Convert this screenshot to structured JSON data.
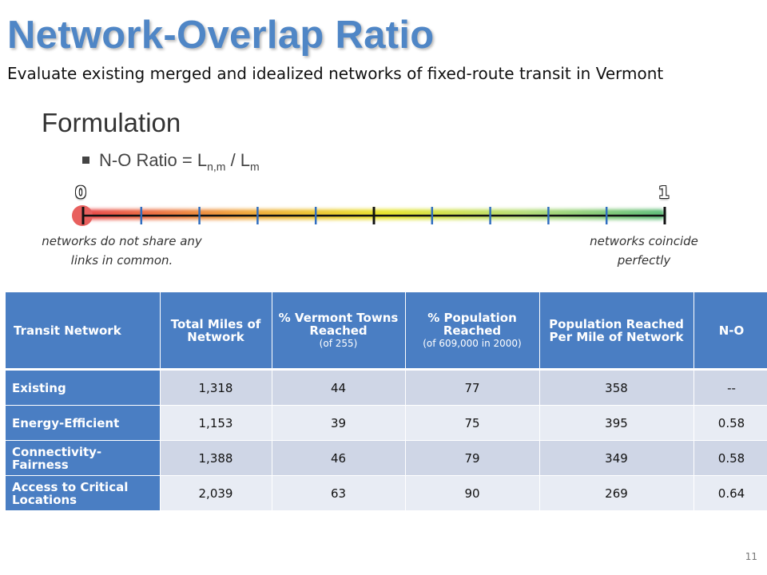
{
  "slide": {
    "title": "Network-Overlap Ratio",
    "subtitle": "Evaluate existing merged and idealized networks of fixed-route transit in Vermont",
    "heading": "Formulation",
    "formula": {
      "prefix": "N-O Ratio = L",
      "sub1": "n,m",
      "middle": " / L",
      "sub2": "m"
    },
    "page_number": "11"
  },
  "scale": {
    "min_label": "0",
    "max_label": "1",
    "left_note": [
      "networks do not share any",
      "links in common."
    ],
    "right_note": [
      "networks coincide",
      "perfectly"
    ],
    "gradient_colors": [
      "#e8474a",
      "#f0a83c",
      "#e8e52e",
      "#b6dd7a",
      "#5ebc7a"
    ],
    "tick_color": "#2f6dc0",
    "end_marker_color": "#e8605e"
  },
  "table": {
    "headers": [
      {
        "label": "Transit Network",
        "sub": ""
      },
      {
        "label": "Total Miles of Network",
        "sub": ""
      },
      {
        "label": "% Vermont Towns Reached",
        "sub": "(of 255)"
      },
      {
        "label": "% Population Reached",
        "sub": "(of 609,000 in 2000)"
      },
      {
        "label": "Population Reached Per Mile of Network",
        "sub": ""
      },
      {
        "label": "N-O",
        "sub": ""
      }
    ],
    "rows": [
      {
        "name": "Existing",
        "miles": "1,318",
        "towns": "44",
        "pop": "77",
        "per_mile": "358",
        "no": "--"
      },
      {
        "name": "Energy-Efficient",
        "miles": "1,153",
        "towns": "39",
        "pop": "75",
        "per_mile": "395",
        "no": "0.58"
      },
      {
        "name": "Connectivity-Fairness",
        "miles": "1,388",
        "towns": "46",
        "pop": "79",
        "per_mile": "349",
        "no": "0.58"
      },
      {
        "name": "Access to Critical Locations",
        "miles": "2,039",
        "towns": "63",
        "pop": "90",
        "per_mile": "269",
        "no": "0.64"
      }
    ]
  }
}
